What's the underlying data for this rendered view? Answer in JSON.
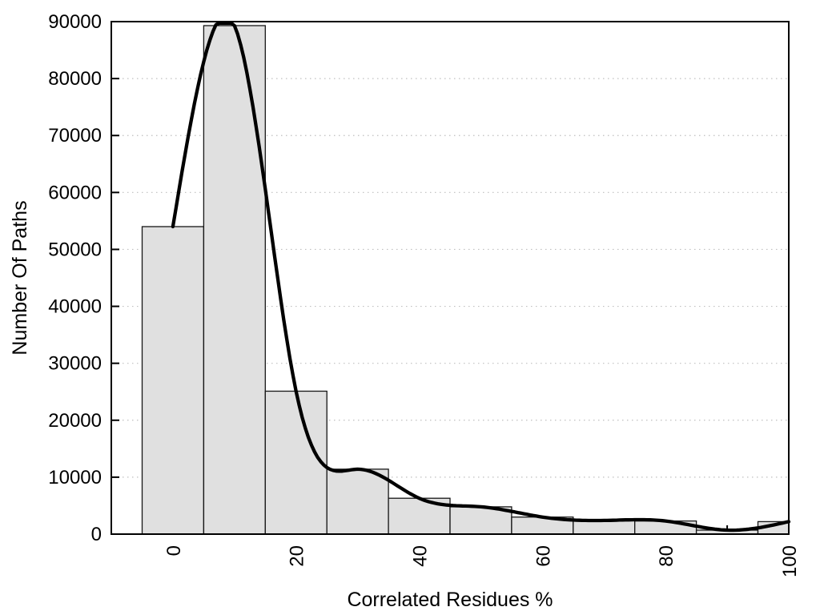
{
  "figure": {
    "background": "#ffffff",
    "title": ""
  },
  "chart_data": {
    "type": "bar",
    "description": "Histogram of number of paths vs correlated residues percentage, with a smooth cubic-spline frequency curve drawn through the bin centers",
    "title": "",
    "xlabel": "Correlated Residues %",
    "ylabel": "Number Of Paths",
    "bin_width": 10,
    "bin_centers": [
      0,
      10,
      20,
      30,
      40,
      50,
      60,
      70,
      80,
      90,
      100
    ],
    "values": [
      54000,
      89300,
      25100,
      11400,
      6300,
      4800,
      3000,
      2400,
      2300,
      700,
      2200
    ],
    "series": [
      {
        "name": "histogram-bars",
        "type": "bar",
        "values": [
          54000,
          89300,
          25100,
          11400,
          6300,
          4800,
          3000,
          2400,
          2300,
          700,
          2200
        ]
      },
      {
        "name": "smoothed-curve",
        "type": "cubic-spline-line",
        "through": "bin centers",
        "values": [
          54000,
          89300,
          25100,
          11400,
          6300,
          4800,
          3000,
          2400,
          2300,
          700,
          2200
        ]
      }
    ],
    "xlim": [
      -10,
      100
    ],
    "ylim": [
      0,
      90000
    ],
    "x_tick_values": [
      0,
      20,
      40,
      60,
      80,
      100
    ],
    "x_tick_labels": [
      "0",
      "20",
      "40",
      "60",
      "80",
      "100"
    ],
    "x_minor_tick_step": 10,
    "x_tick_label_rotation_deg": 90,
    "y_tick_values": [
      0,
      10000,
      20000,
      30000,
      40000,
      50000,
      60000,
      70000,
      80000,
      90000
    ],
    "y_tick_labels": [
      "0",
      "10000",
      "20000",
      "30000",
      "40000",
      "50000",
      "60000",
      "70000",
      "80000",
      "90000"
    ],
    "grid": {
      "horizontal": "dotted",
      "vertical": "none"
    },
    "legend": "none",
    "colors": {
      "bar_fill": "#e0e0e0",
      "bar_border": "#161616",
      "curve": "#000000",
      "grid": "#bfbfbf",
      "axis": "#000000",
      "text": "#000000",
      "background": "#ffffff"
    }
  }
}
